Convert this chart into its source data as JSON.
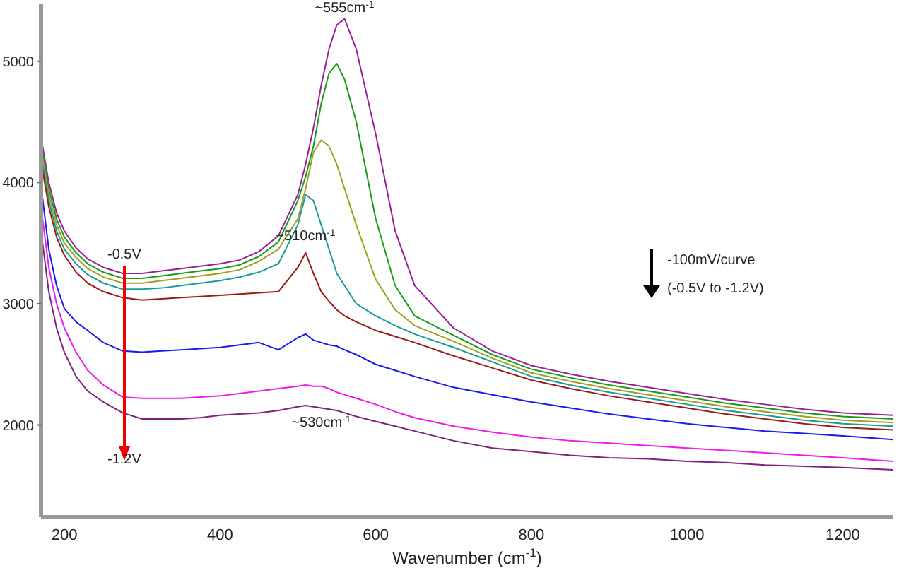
{
  "chart_data": {
    "type": "line",
    "xlabel": "Wavenumber (cm$^{-1}$)",
    "x": [
      172,
      180,
      190,
      200,
      215,
      230,
      250,
      275,
      300,
      325,
      350,
      375,
      400,
      425,
      450,
      475,
      500,
      510,
      520,
      530,
      540,
      550,
      560,
      575,
      600,
      625,
      650,
      700,
      750,
      800,
      850,
      900,
      950,
      1000,
      1050,
      1100,
      1150,
      1200,
      1265
    ],
    "series": [
      {
        "color": "#9b1f9b",
        "values": [
          4300,
          4000,
          3750,
          3600,
          3460,
          3370,
          3300,
          3250,
          3250,
          3270,
          3290,
          3310,
          3330,
          3360,
          3430,
          3560,
          3900,
          4150,
          4450,
          4800,
          5100,
          5300,
          5350,
          5100,
          4400,
          3600,
          3150,
          2800,
          2610,
          2490,
          2420,
          2360,
          2310,
          2260,
          2210,
          2170,
          2130,
          2100,
          2080
        ]
      },
      {
        "color": "#1a9a1a",
        "values": [
          4250,
          3950,
          3700,
          3550,
          3420,
          3330,
          3260,
          3210,
          3210,
          3230,
          3250,
          3270,
          3290,
          3320,
          3390,
          3510,
          3850,
          4050,
          4300,
          4650,
          4900,
          4980,
          4850,
          4500,
          3700,
          3150,
          2900,
          2740,
          2580,
          2460,
          2390,
          2330,
          2280,
          2230,
          2180,
          2140,
          2100,
          2070,
          2050
        ]
      },
      {
        "color": "#a0a020",
        "values": [
          4200,
          3900,
          3650,
          3500,
          3380,
          3290,
          3220,
          3170,
          3170,
          3190,
          3210,
          3230,
          3250,
          3280,
          3350,
          3450,
          3700,
          3950,
          4250,
          4350,
          4300,
          4150,
          3950,
          3650,
          3200,
          2950,
          2820,
          2690,
          2550,
          2430,
          2360,
          2300,
          2250,
          2200,
          2150,
          2110,
          2070,
          2040,
          2020
        ]
      },
      {
        "color": "#1a9a9a",
        "values": [
          4150,
          3850,
          3600,
          3450,
          3330,
          3240,
          3170,
          3120,
          3120,
          3130,
          3150,
          3170,
          3190,
          3220,
          3260,
          3330,
          3650,
          3900,
          3850,
          3650,
          3450,
          3250,
          3150,
          3000,
          2900,
          2820,
          2750,
          2640,
          2520,
          2400,
          2330,
          2270,
          2220,
          2170,
          2120,
          2080,
          2040,
          2010,
          1990
        ]
      },
      {
        "color": "#9b1a1a",
        "values": [
          4100,
          3800,
          3550,
          3400,
          3260,
          3170,
          3100,
          3050,
          3030,
          3040,
          3050,
          3060,
          3070,
          3080,
          3090,
          3100,
          3300,
          3420,
          3250,
          3100,
          3020,
          2950,
          2900,
          2850,
          2780,
          2730,
          2680,
          2570,
          2470,
          2370,
          2300,
          2240,
          2190,
          2140,
          2090,
          2050,
          2010,
          1980,
          1960
        ]
      },
      {
        "color": "#1a1aee",
        "values": [
          3870,
          3450,
          3150,
          2960,
          2850,
          2780,
          2680,
          2610,
          2600,
          2610,
          2620,
          2630,
          2640,
          2660,
          2680,
          2620,
          2720,
          2750,
          2700,
          2680,
          2660,
          2650,
          2620,
          2580,
          2500,
          2450,
          2400,
          2310,
          2250,
          2190,
          2140,
          2090,
          2050,
          2010,
          1980,
          1950,
          1930,
          1910,
          1880
        ]
      },
      {
        "color": "#ee1aee",
        "values": [
          3700,
          3300,
          3000,
          2800,
          2600,
          2450,
          2330,
          2230,
          2220,
          2220,
          2220,
          2230,
          2240,
          2260,
          2280,
          2300,
          2320,
          2330,
          2320,
          2320,
          2300,
          2270,
          2250,
          2220,
          2170,
          2110,
          2060,
          1990,
          1940,
          1900,
          1870,
          1850,
          1830,
          1810,
          1790,
          1770,
          1750,
          1730,
          1700
        ]
      },
      {
        "color": "#802080",
        "values": [
          3500,
          3100,
          2800,
          2600,
          2400,
          2280,
          2190,
          2100,
          2050,
          2050,
          2050,
          2060,
          2080,
          2090,
          2100,
          2120,
          2150,
          2160,
          2150,
          2140,
          2130,
          2120,
          2100,
          2070,
          2030,
          1990,
          1950,
          1870,
          1810,
          1780,
          1750,
          1730,
          1720,
          1700,
          1690,
          1670,
          1660,
          1650,
          1630
        ]
      }
    ],
    "xlim": [
      170,
      1265
    ],
    "xticks": [
      200,
      400,
      600,
      800,
      1000,
      1200
    ],
    "ylim": [
      1240,
      5470
    ],
    "yticks": [
      2000,
      3000,
      4000,
      5000
    ],
    "annotations": [
      {
        "text": "~555cm$^{-1}$",
        "x": 560,
        "y": 5350
      },
      {
        "text": "~510cm$^{-1}$",
        "x": 510,
        "y": 3420
      },
      {
        "text": "~530cm$^{-1}$",
        "x": 530,
        "y": 2150
      },
      "-0.5V",
      "-1.2V",
      "-100mV/curve",
      "(-0.5V to -1.2V)"
    ]
  }
}
